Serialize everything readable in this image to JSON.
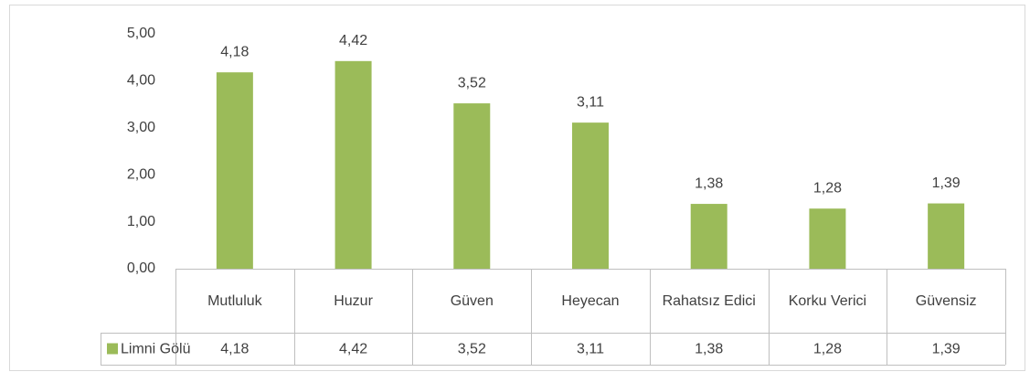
{
  "chart_data": {
    "type": "bar",
    "categories": [
      "Mutluluk",
      "Huzur",
      "Güven",
      "Heyecan",
      "Rahatsız Edici",
      "Korku Verici",
      "Güvensiz"
    ],
    "series": [
      {
        "name": "Limni Gölü",
        "color": "#9bbb59",
        "values": [
          4.18,
          4.42,
          3.52,
          3.11,
          1.38,
          1.28,
          1.39
        ],
        "value_labels": [
          "4,18",
          "4,42",
          "3,52",
          "3,11",
          "1,38",
          "1,28",
          "1,39"
        ]
      }
    ],
    "ylim": [
      0,
      5
    ],
    "yticks": [
      {
        "value": 0,
        "label": "0,00"
      },
      {
        "value": 1,
        "label": "1,00"
      },
      {
        "value": 2,
        "label": "2,00"
      },
      {
        "value": 3,
        "label": "3,00"
      },
      {
        "value": 4,
        "label": "4,00"
      },
      {
        "value": 5,
        "label": "5,00"
      }
    ],
    "grid": false,
    "data_table": true
  }
}
